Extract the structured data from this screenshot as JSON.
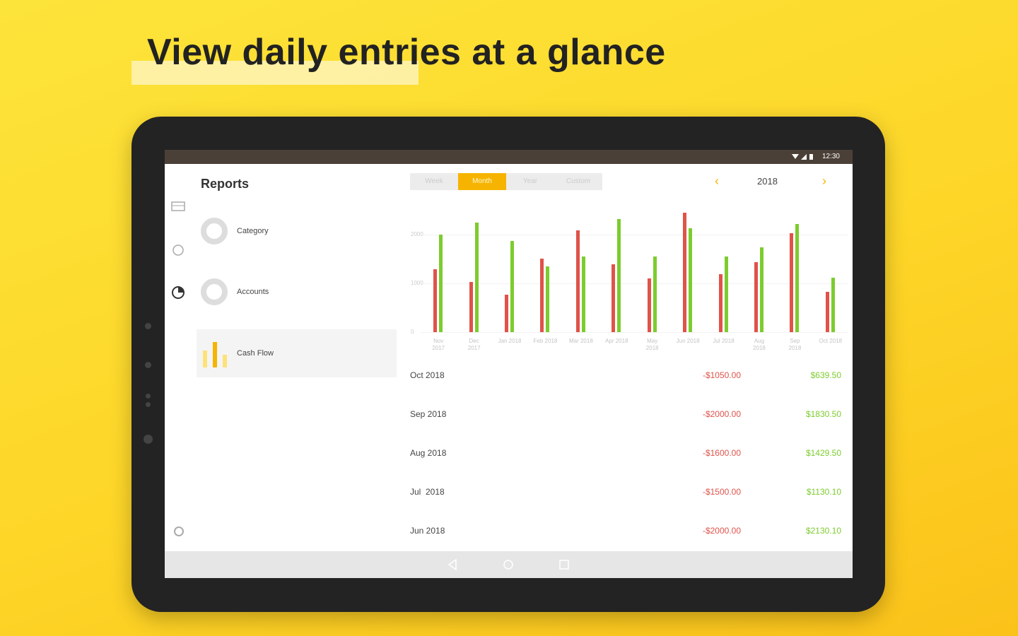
{
  "header": {
    "title": "View daily entries at a glance"
  },
  "status_bar": {
    "time": "12:30"
  },
  "sidebar": {
    "title": "Reports",
    "items": [
      "Category",
      "Accounts",
      "Cash Flow"
    ]
  },
  "tabs": [
    "Week",
    "Month",
    "Year",
    "Custom"
  ],
  "year": "2018",
  "chart_data": {
    "type": "bar",
    "categories": [
      "Nov 2017",
      "Dec 2017",
      "Jan 2018",
      "Feb 2018",
      "Mar 2018",
      "Apr 2018",
      "May 2018",
      "Jun 2018",
      "Jul 2018",
      "Aug 2018",
      "Sep 2018",
      "Oct 2018"
    ],
    "series": [
      {
        "color": "#e0524a",
        "values": [
          1290,
          1030,
          770,
          1500,
          2080,
          1390,
          1100,
          2450,
          1190,
          1440,
          2030,
          820
        ]
      },
      {
        "color": "#7ccc2e",
        "values": [
          2000,
          2240,
          1870,
          1340,
          1550,
          2310,
          1550,
          2130,
          1550,
          1730,
          2210,
          1110
        ]
      }
    ],
    "ylim": [
      0,
      2750
    ],
    "yticks": [
      0,
      1000,
      2000
    ],
    "grid": true
  },
  "table": {
    "rows": [
      [
        "Oct 2018",
        "-$1050.00",
        "$639.50"
      ],
      [
        "Sep 2018",
        "-$2000.00",
        "$1830.50"
      ],
      [
        "Aug 2018",
        "-$1600.00",
        "$1429.50"
      ],
      [
        "Jul  2018",
        "-$1500.00",
        "$1130.10"
      ],
      [
        "Jun 2018",
        "-$2000.00",
        "$2130.10"
      ]
    ]
  }
}
